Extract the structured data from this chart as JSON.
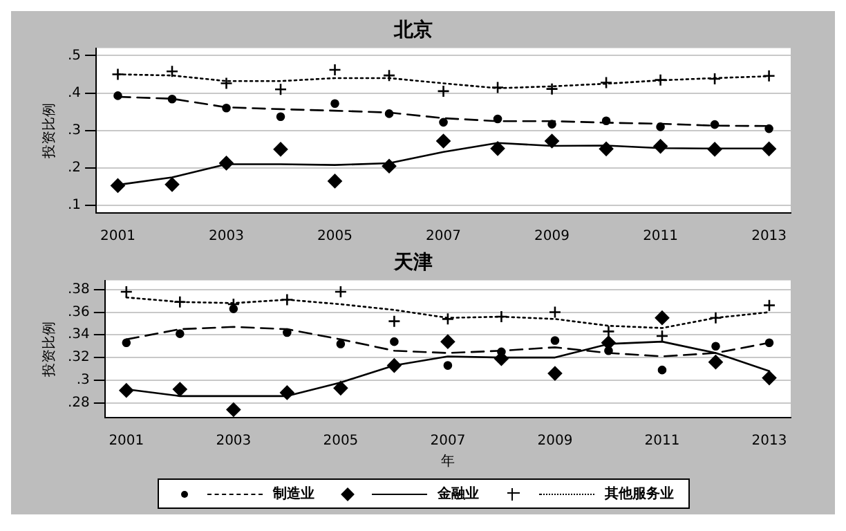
{
  "chart_data": [
    {
      "type": "scatter",
      "title": "北京",
      "ylabel": "投资比例",
      "x": [
        2001,
        2002,
        2003,
        2004,
        2005,
        2006,
        2007,
        2008,
        2009,
        2010,
        2011,
        2012,
        2013
      ],
      "xlim": [
        2000.6,
        2013.4
      ],
      "xticks": [
        2001,
        2003,
        2005,
        2007,
        2009,
        2011,
        2013
      ],
      "ylim": [
        0.08,
        0.52
      ],
      "yticks": [
        {
          "value": 0.1,
          "label": ".1"
        },
        {
          "value": 0.2,
          "label": ".2"
        },
        {
          "value": 0.3,
          "label": ".3"
        },
        {
          "value": 0.4,
          "label": ".4"
        },
        {
          "value": 0.5,
          "label": ".5"
        }
      ],
      "grid": "y",
      "legend": false,
      "series": [
        {
          "type": "scatter",
          "marker": "circle",
          "color": "#000000",
          "values": [
            0.393,
            0.384,
            0.36,
            0.337,
            0.372,
            0.345,
            0.322,
            0.331,
            0.317,
            0.326,
            0.31,
            0.316,
            0.305
          ]
        },
        {
          "type": "scatter",
          "marker": "diamond",
          "color": "#000000",
          "values": [
            0.153,
            0.156,
            0.213,
            0.25,
            0.165,
            0.205,
            0.272,
            0.252,
            0.272,
            0.251,
            0.258,
            0.25,
            0.251
          ]
        },
        {
          "type": "scatter",
          "marker": "cross",
          "color": "#000000",
          "values": [
            0.45,
            0.458,
            0.426,
            0.41,
            0.462,
            0.447,
            0.405,
            0.415,
            0.411,
            0.428,
            0.435,
            0.438,
            0.446
          ]
        },
        {
          "type": "line",
          "marker": "none",
          "line_style": "dashed",
          "color": "#000000",
          "values": [
            0.39,
            0.385,
            0.362,
            0.357,
            0.353,
            0.348,
            0.333,
            0.325,
            0.325,
            0.321,
            0.318,
            0.313,
            0.312
          ]
        },
        {
          "type": "line",
          "marker": "none",
          "line_style": "solid",
          "color": "#000000",
          "values": [
            0.155,
            0.175,
            0.21,
            0.21,
            0.208,
            0.213,
            0.243,
            0.267,
            0.259,
            0.26,
            0.253,
            0.252,
            0.252
          ]
        },
        {
          "type": "line",
          "marker": "none",
          "line_style": "dotted",
          "color": "#000000",
          "values": [
            0.45,
            0.447,
            0.432,
            0.432,
            0.44,
            0.44,
            0.426,
            0.413,
            0.418,
            0.425,
            0.434,
            0.44,
            0.445
          ]
        }
      ]
    },
    {
      "type": "scatter",
      "title": "天津",
      "ylabel": "投资比例",
      "xlabel": "年",
      "x": [
        2001,
        2002,
        2003,
        2004,
        2005,
        2006,
        2007,
        2008,
        2009,
        2010,
        2011,
        2012,
        2013
      ],
      "xlim": [
        2000.6,
        2013.4
      ],
      "xticks": [
        2001,
        2003,
        2005,
        2007,
        2009,
        2011,
        2013
      ],
      "ylim": [
        0.267,
        0.388
      ],
      "yticks": [
        {
          "value": 0.28,
          "label": ".28"
        },
        {
          "value": 0.3,
          "label": ".3"
        },
        {
          "value": 0.32,
          "label": ".32"
        },
        {
          "value": 0.34,
          "label": ".34"
        },
        {
          "value": 0.36,
          "label": ".36"
        },
        {
          "value": 0.38,
          "label": ".38"
        }
      ],
      "grid": "y",
      "legend": "bottom",
      "series": [
        {
          "type": "scatter",
          "marker": "circle",
          "color": "#000000",
          "values": [
            0.333,
            0.341,
            0.363,
            0.342,
            0.332,
            0.334,
            0.313,
            0.325,
            0.335,
            0.326,
            0.309,
            0.33,
            0.333
          ]
        },
        {
          "type": "scatter",
          "marker": "diamond",
          "color": "#000000",
          "values": [
            0.291,
            0.292,
            0.274,
            0.289,
            0.293,
            0.313,
            0.334,
            0.319,
            0.306,
            0.333,
            0.355,
            0.316,
            0.302
          ]
        },
        {
          "type": "scatter",
          "marker": "cross",
          "color": "#000000",
          "values": [
            0.378,
            0.369,
            0.367,
            0.371,
            0.378,
            0.352,
            0.354,
            0.356,
            0.36,
            0.343,
            0.339,
            0.355,
            0.366
          ]
        },
        {
          "type": "line",
          "name": "制造业",
          "marker": "none",
          "line_style": "dashed",
          "color": "#000000",
          "values": [
            0.336,
            0.345,
            0.347,
            0.345,
            0.336,
            0.326,
            0.324,
            0.326,
            0.329,
            0.324,
            0.321,
            0.324,
            0.333
          ]
        },
        {
          "type": "line",
          "name": "金融业",
          "marker": "none",
          "line_style": "solid",
          "color": "#000000",
          "values": [
            0.292,
            0.286,
            0.286,
            0.286,
            0.298,
            0.313,
            0.321,
            0.32,
            0.32,
            0.332,
            0.334,
            0.324,
            0.308
          ]
        },
        {
          "type": "line",
          "name": "其他服务业",
          "marker": "none",
          "line_style": "dotted",
          "color": "#000000",
          "values": [
            0.373,
            0.369,
            0.368,
            0.371,
            0.367,
            0.362,
            0.355,
            0.356,
            0.354,
            0.348,
            0.346,
            0.355,
            0.36
          ]
        }
      ]
    }
  ]
}
